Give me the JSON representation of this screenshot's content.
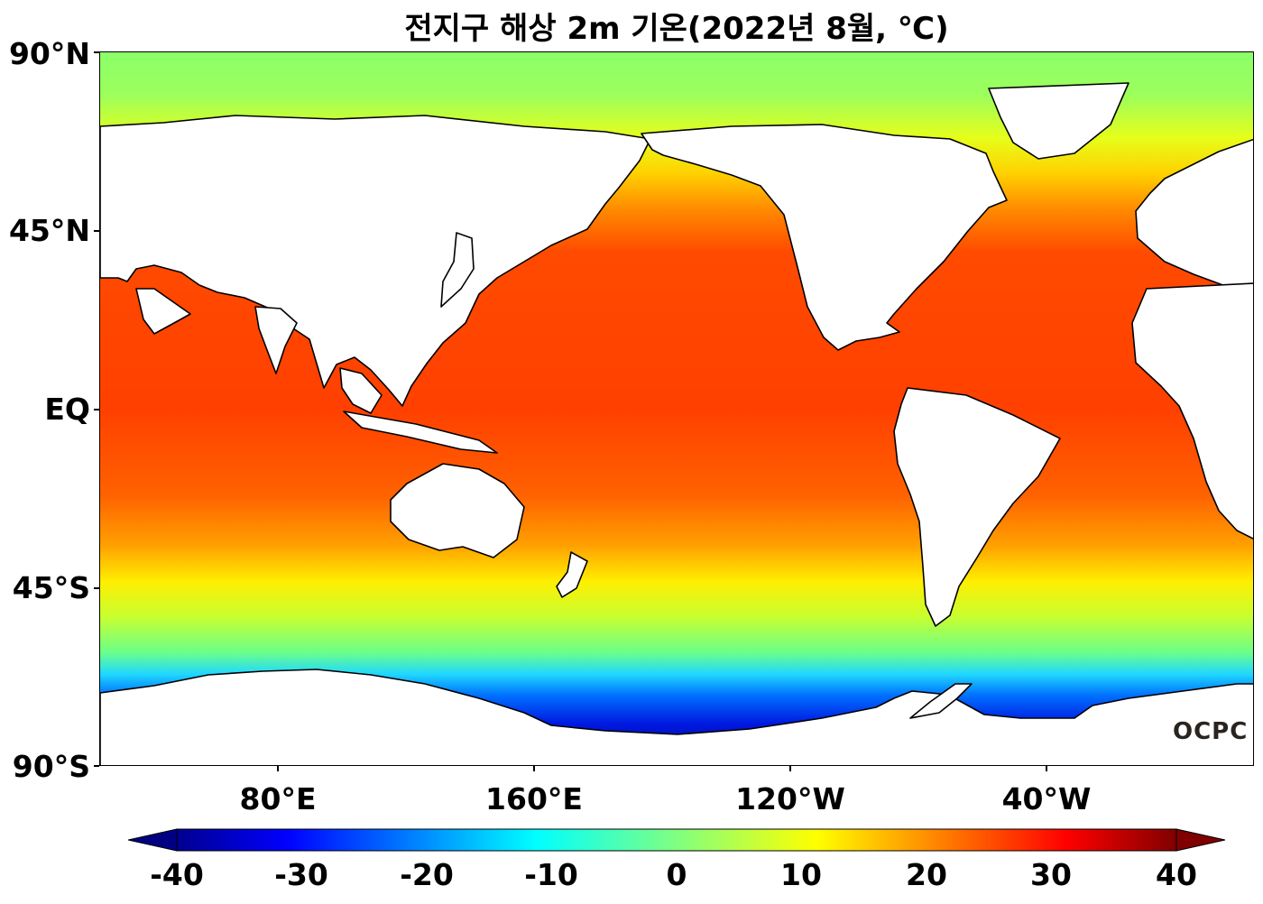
{
  "title": "전지구 해상 2m 기온(2022년 8월, ℃)",
  "map": {
    "projection": "equirectangular",
    "central_longitude": "180",
    "variable": "sea surface 2m air temperature",
    "units": "℃",
    "lat_ticks": [
      "90°N",
      "45°N",
      "EQ",
      "45°S",
      "90°S"
    ],
    "lon_ticks": [
      "80°E",
      "160°E",
      "120°W",
      "40°W"
    ],
    "land_color": "#ffffff",
    "coastline_color": "#000000"
  },
  "colorbar": {
    "colormap": "jet",
    "min": -40,
    "max": 40,
    "extend": "both",
    "tick_labels": [
      "-40",
      "-30",
      "-20",
      "-10",
      "0",
      "10",
      "20",
      "30",
      "40"
    ]
  },
  "watermark": "OCPC"
}
